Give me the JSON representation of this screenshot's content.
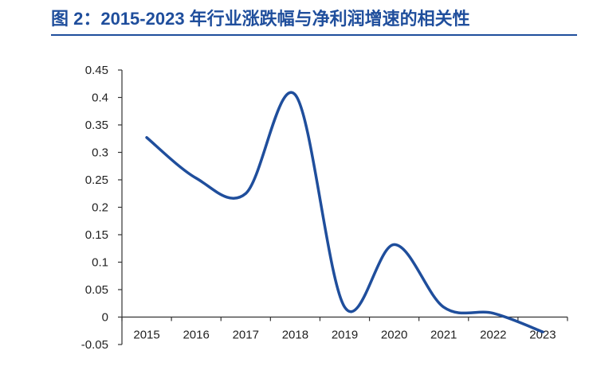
{
  "title": "图 2：2015-2023 年行业涨跌幅与净利润增速的相关性",
  "chart_data": {
    "type": "line",
    "x": [
      "2015",
      "2016",
      "2017",
      "2018",
      "2019",
      "2020",
      "2021",
      "2022",
      "2023"
    ],
    "series": [
      {
        "values": [
          0.327,
          0.253,
          0.225,
          0.405,
          0.018,
          0.132,
          0.018,
          0.007,
          -0.027
        ],
        "color": "#1f4e9c"
      }
    ],
    "y_ticks": [
      "0.45",
      "0.4",
      "0.35",
      "0.3",
      "0.25",
      "0.2",
      "0.15",
      "0.1",
      "0.05",
      "0",
      "-0.05"
    ],
    "ylim": [
      -0.05,
      0.45
    ],
    "xlabel": "",
    "ylabel": "",
    "grid": false,
    "legend": false
  }
}
